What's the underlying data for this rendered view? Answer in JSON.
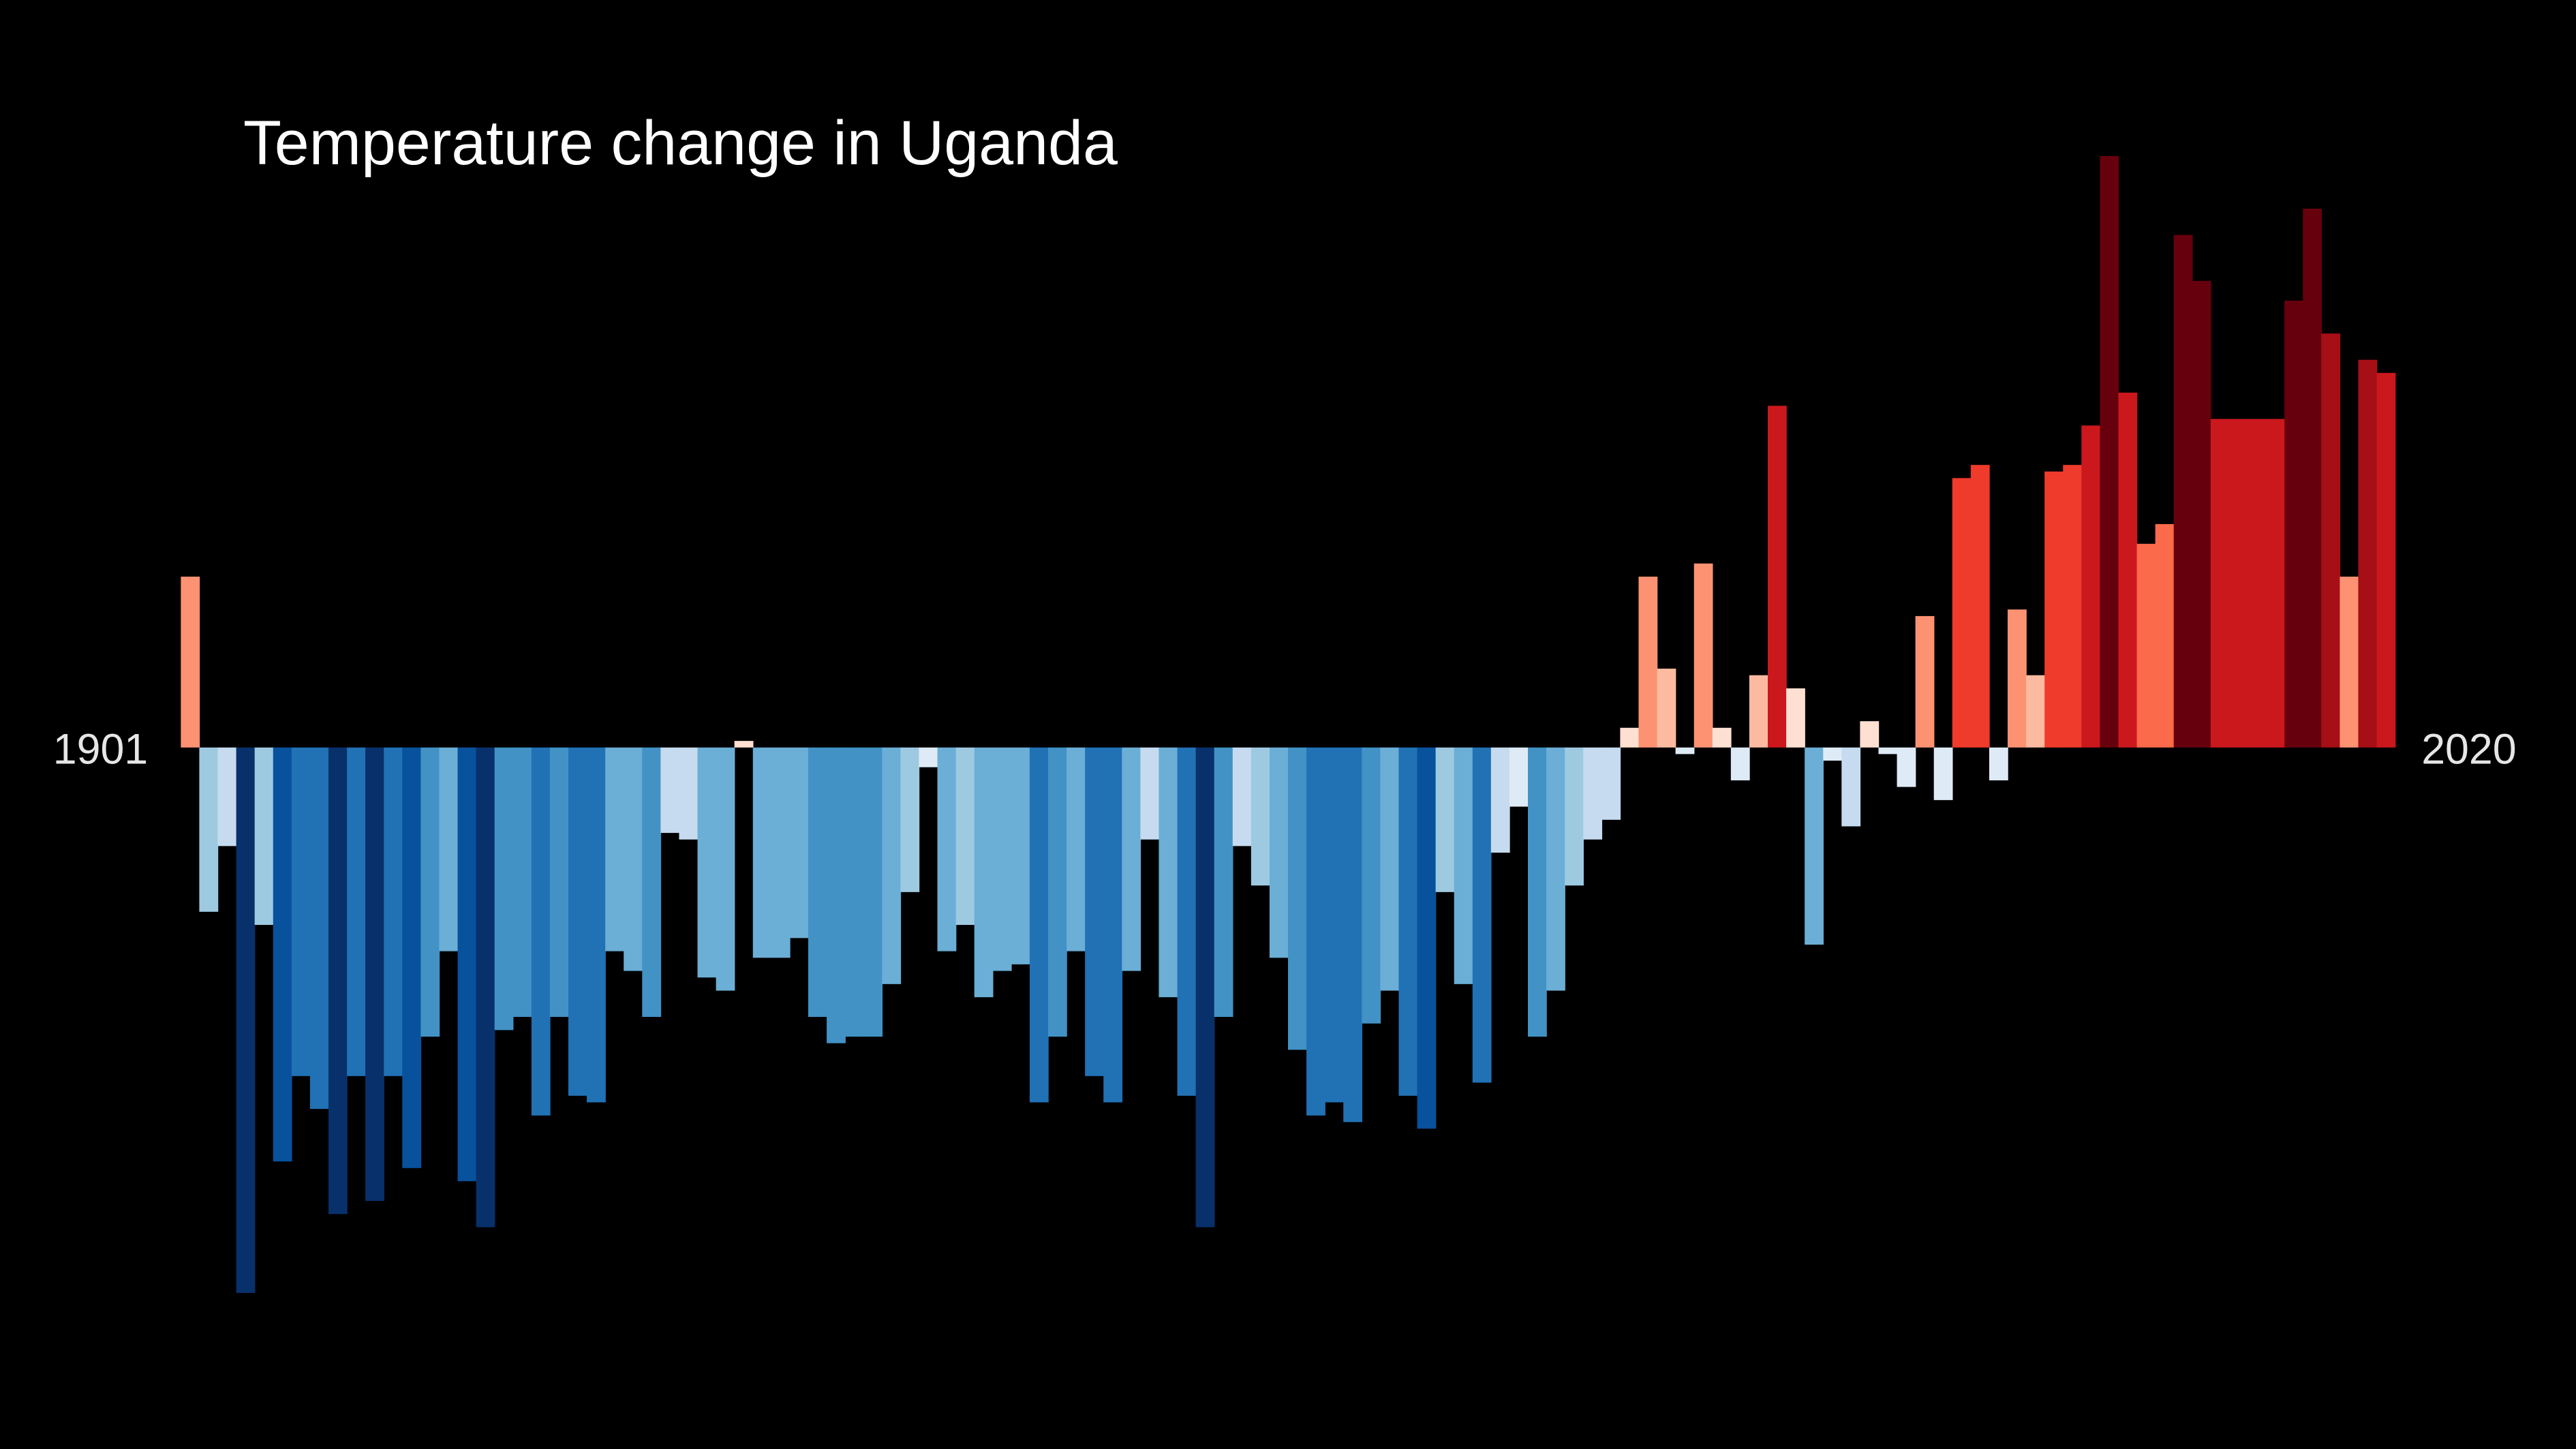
{
  "chart_data": {
    "type": "bar",
    "title": "Temperature change in Uganda",
    "categories": [
      "1901",
      null,
      null,
      null,
      null,
      null,
      null,
      null,
      null,
      null,
      null,
      null,
      null,
      null,
      null,
      null,
      null,
      null,
      null,
      null,
      null,
      null,
      null,
      null,
      null,
      null,
      null,
      null,
      null,
      null,
      null,
      null,
      null,
      null,
      null,
      null,
      null,
      null,
      null,
      null,
      null,
      null,
      null,
      null,
      null,
      null,
      null,
      null,
      null,
      null,
      null,
      null,
      null,
      null,
      null,
      null,
      null,
      null,
      null,
      null,
      null,
      null,
      null,
      null,
      null,
      null,
      null,
      null,
      null,
      null,
      null,
      null,
      null,
      null,
      null,
      null,
      null,
      null,
      null,
      null,
      null,
      null,
      null,
      null,
      null,
      null,
      null,
      null,
      null,
      null,
      null,
      null,
      null,
      null,
      null,
      null,
      null,
      null,
      null,
      null,
      null,
      null,
      null,
      null,
      null,
      null,
      null,
      null,
      null,
      null,
      null,
      null,
      null,
      null,
      null,
      null,
      null,
      null,
      null,
      "2020"
    ],
    "values": [
      0.26,
      -0.25,
      -0.15,
      -0.83,
      -0.27,
      -0.63,
      -0.5,
      -0.55,
      -0.71,
      -0.5,
      -0.69,
      -0.5,
      -0.64,
      -0.44,
      -0.31,
      -0.66,
      -0.73,
      -0.43,
      -0.41,
      -0.56,
      -0.41,
      -0.53,
      -0.54,
      -0.31,
      -0.34,
      -0.41,
      -0.13,
      -0.14,
      -0.35,
      -0.37,
      0.01,
      -0.32,
      -0.32,
      -0.29,
      -0.41,
      -0.45,
      -0.44,
      -0.44,
      -0.36,
      -0.22,
      -0.03,
      -0.31,
      -0.27,
      -0.38,
      -0.34,
      -0.33,
      -0.54,
      -0.44,
      -0.31,
      -0.5,
      -0.54,
      -0.34,
      -0.14,
      -0.38,
      -0.53,
      -0.73,
      -0.41,
      -0.15,
      -0.21,
      -0.32,
      -0.46,
      -0.56,
      -0.54,
      -0.57,
      -0.42,
      -0.37,
      -0.53,
      -0.58,
      -0.22,
      -0.36,
      -0.51,
      -0.16,
      -0.09,
      -0.44,
      -0.37,
      -0.21,
      -0.14,
      -0.11,
      0.03,
      0.26,
      0.12,
      -0.01,
      0.28,
      0.03,
      -0.05,
      0.11,
      0.52,
      0.09,
      -0.3,
      -0.02,
      -0.12,
      0.04,
      -0.01,
      -0.06,
      0.2,
      -0.08,
      0.41,
      0.43,
      -0.05,
      0.21,
      0.11,
      0.42,
      0.43,
      0.49,
      0.9,
      0.54,
      0.31,
      0.34,
      0.78,
      0.71,
      0.5,
      0.5,
      0.5,
      0.5,
      0.68,
      0.82,
      0.63,
      0.26,
      0.59,
      0.57
    ],
    "colormap": [
      "#08306b",
      "#08519c",
      "#2171b5",
      "#4292c6",
      "#6baed6",
      "#9ecae1",
      "#c6dbef",
      "#deebf7",
      "#fee0d2",
      "#fcbba1",
      "#fc9272",
      "#fb6a4a",
      "#ef3b2c",
      "#cb181d",
      "#a50f15",
      "#67000d"
    ],
    "background": "#000000"
  }
}
